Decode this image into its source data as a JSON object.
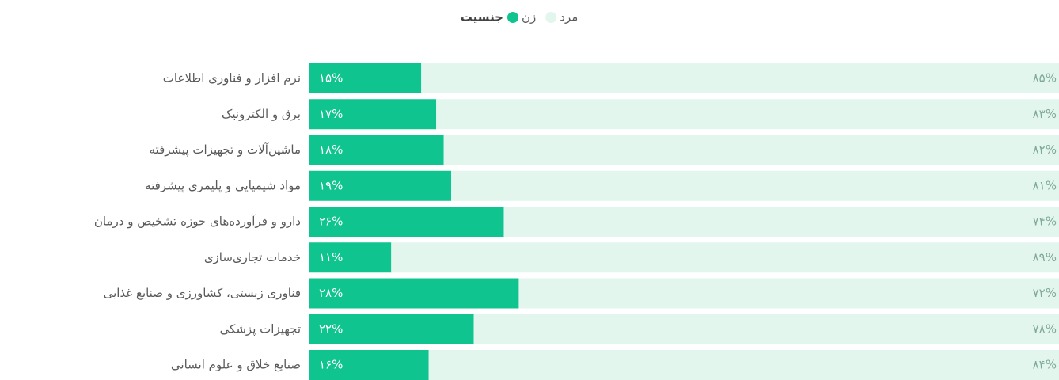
{
  "chart_data": {
    "type": "bar",
    "orientation": "horizontal",
    "stacked": true,
    "legend_title": "جنسیت",
    "categories": [
      "نرم افزار و فناوری اطلاعات",
      "برق و الکترونیک",
      "ماشین‌آلات و تجهیزات پیشرفته",
      "مواد شیمیایی و پلیمری پیشرفته",
      "دارو و فرآورده‌های حوزه تشخیص و درمان",
      "خدمات تجاری‌سازی",
      "فناوری زیستی، کشاورزی و صنایع غذایی",
      "تجهیزات پزشکی",
      "صنایع خلاق و علوم انسانی"
    ],
    "series": [
      {
        "name": "زن",
        "color": "#0fc48e",
        "values": [
          15,
          17,
          18,
          19,
          26,
          11,
          28,
          22,
          16
        ],
        "value_labels": [
          "۱۵%",
          "۱۷%",
          "۱۸%",
          "۱۹%",
          "۲۶%",
          "۱۱%",
          "۲۸%",
          "۲۲%",
          "۱۶%"
        ]
      },
      {
        "name": "مرد",
        "color": "#e2f6ee",
        "values": [
          85,
          83,
          82,
          81,
          74,
          89,
          72,
          78,
          84
        ],
        "value_labels": [
          "۸۵%",
          "۸۳%",
          "۸۲%",
          "۸۱%",
          "۷۴%",
          "۸۹%",
          "۷۲%",
          "۷۸%",
          "۸۴%"
        ]
      }
    ],
    "xlim": [
      0,
      100
    ]
  }
}
